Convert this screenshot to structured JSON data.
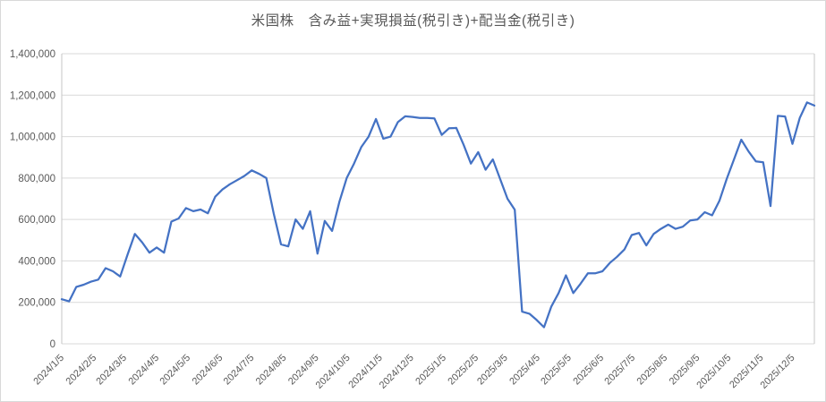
{
  "chart_data": {
    "type": "line",
    "title": "米国株　含み益+実現損益(税引き)+配当金(税引き)",
    "xlabel": "",
    "ylabel": "",
    "ylim": [
      0,
      1400000
    ],
    "ytick_interval": 200000,
    "ytick_labels": [
      "0",
      "200,000",
      "400,000",
      "600,000",
      "800,000",
      "1,000,000",
      "1,200,000",
      "1,400,000"
    ],
    "xtick_labels": [
      "2024/1/5",
      "2024/2/5",
      "2024/3/5",
      "2024/4/5",
      "2024/5/5",
      "2024/6/5",
      "2024/7/5",
      "2024/8/5",
      "2024/9/5",
      "2024/10/5",
      "2024/11/5",
      "2024/12/5",
      "2025/1/5",
      "2025/2/5",
      "2025/3/5",
      "2025/4/5",
      "2025/5/5",
      "2025/6/5",
      "2025/7/5",
      "2025/8/5",
      "2025/9/5",
      "2025/10/5",
      "2025/11/5",
      "2025/12/5"
    ],
    "grid": true,
    "legend": "none",
    "line_color": "#4472C4",
    "gridline_color": "#D9D9D9",
    "axis_line_color": "#C6C6C6",
    "axis_text_color": "#595959",
    "x": [
      "2024/1/5",
      "2024/1/12",
      "2024/1/19",
      "2024/1/26",
      "2024/2/2",
      "2024/2/9",
      "2024/2/16",
      "2024/2/23",
      "2024/3/1",
      "2024/3/8",
      "2024/3/15",
      "2024/3/22",
      "2024/3/29",
      "2024/4/5",
      "2024/4/12",
      "2024/4/19",
      "2024/4/26",
      "2024/5/3",
      "2024/5/10",
      "2024/5/17",
      "2024/5/24",
      "2024/5/31",
      "2024/6/7",
      "2024/6/14",
      "2024/6/21",
      "2024/6/28",
      "2024/7/5",
      "2024/7/12",
      "2024/7/19",
      "2024/7/26",
      "2024/8/2",
      "2024/8/9",
      "2024/8/16",
      "2024/8/23",
      "2024/8/30",
      "2024/9/6",
      "2024/9/13",
      "2024/9/20",
      "2024/9/27",
      "2024/10/4",
      "2024/10/11",
      "2024/10/18",
      "2024/10/25",
      "2024/11/1",
      "2024/11/8",
      "2024/11/15",
      "2024/11/22",
      "2024/11/29",
      "2024/12/6",
      "2024/12/13",
      "2024/12/20",
      "2024/12/27",
      "2025/1/3",
      "2025/1/10",
      "2025/1/17",
      "2025/1/24",
      "2025/1/31",
      "2025/2/7",
      "2025/2/14",
      "2025/2/21",
      "2025/2/28",
      "2025/3/7",
      "2025/3/14",
      "2025/3/21",
      "2025/3/28",
      "2025/4/4",
      "2025/4/11",
      "2025/4/18",
      "2025/4/25",
      "2025/5/2",
      "2025/5/9",
      "2025/5/16",
      "2025/5/23",
      "2025/5/30",
      "2025/6/6",
      "2025/6/13",
      "2025/6/20",
      "2025/6/27",
      "2025/7/4",
      "2025/7/11",
      "2025/7/18",
      "2025/7/25",
      "2025/8/1",
      "2025/8/8",
      "2025/8/15",
      "2025/8/22",
      "2025/8/29",
      "2025/9/5",
      "2025/9/12",
      "2025/9/19",
      "2025/9/26",
      "2025/10/3",
      "2025/10/10",
      "2025/10/17",
      "2025/10/24",
      "2025/10/31",
      "2025/11/7",
      "2025/11/14",
      "2025/11/21",
      "2025/11/28",
      "2025/12/5",
      "2025/12/12",
      "2025/12/19",
      "2025/12/26"
    ],
    "values": [
      215000,
      205000,
      275000,
      285000,
      300000,
      310000,
      365000,
      350000,
      325000,
      430000,
      530000,
      490000,
      440000,
      465000,
      440000,
      590000,
      605000,
      655000,
      640000,
      648000,
      630000,
      710000,
      745000,
      770000,
      790000,
      810000,
      837000,
      820000,
      800000,
      630000,
      480000,
      470000,
      600000,
      555000,
      640000,
      435000,
      593000,
      545000,
      686000,
      800000,
      870000,
      950000,
      1000000,
      1085000,
      990000,
      1000000,
      1070000,
      1098000,
      1095000,
      1090000,
      1090000,
      1088000,
      1008000,
      1040000,
      1042000,
      960000,
      870000,
      925000,
      840000,
      890000,
      795000,
      700000,
      647000,
      155000,
      145000,
      115000,
      80000,
      180000,
      245000,
      330000,
      245000,
      290000,
      340000,
      340000,
      350000,
      390000,
      420000,
      455000,
      525000,
      535000,
      475000,
      530000,
      555000,
      575000,
      555000,
      565000,
      595000,
      600000,
      635000,
      620000,
      690000,
      795000,
      890000,
      985000,
      928000,
      880000,
      876000,
      665000,
      1100000,
      1097000,
      965000,
      1090000,
      1165000,
      1150000
    ]
  }
}
